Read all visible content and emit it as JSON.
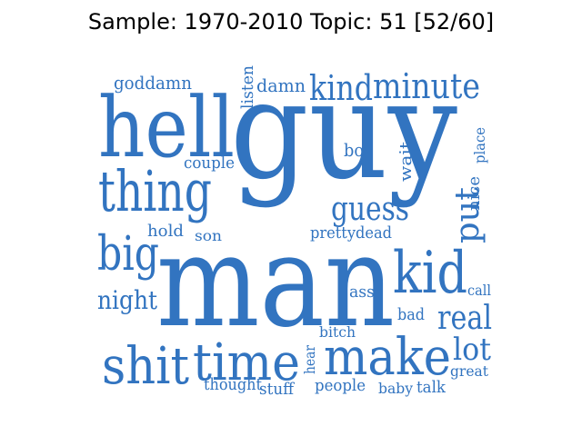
{
  "title": "Sample: 1970-2010 Topic: 51 [52/60]",
  "style": {
    "word_color": "#3274c0",
    "background": "#ffffff"
  },
  "words": [
    "guy",
    "man",
    "hell",
    "thing",
    "kid",
    "big",
    "time",
    "make",
    "shit",
    "minute",
    "kind",
    "guess",
    "put",
    "real",
    "lot",
    "night",
    "goddamn",
    "damn",
    "listen",
    "couple",
    "boy",
    "wait",
    "place",
    "nice",
    "hold",
    "son",
    "pretty",
    "dead",
    "ass",
    "call",
    "bad",
    "bitch",
    "hear",
    "great",
    "thought",
    "stuff",
    "people",
    "baby",
    "talk"
  ]
}
